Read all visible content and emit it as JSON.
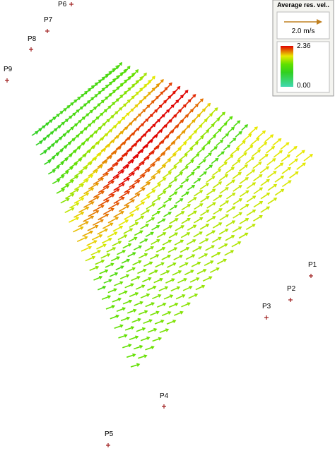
{
  "legend": {
    "title": "Average res. vel..",
    "scale_label": "2.0 m/s",
    "colorbar": {
      "max": "2.36",
      "min": "0.00"
    }
  },
  "points": [
    {
      "label": "P1"
    },
    {
      "label": "P2"
    },
    {
      "label": "P3"
    },
    {
      "label": "P4"
    },
    {
      "label": "P5"
    },
    {
      "label": "P6"
    },
    {
      "label": "P7"
    },
    {
      "label": "P8"
    },
    {
      "label": "P9"
    }
  ]
}
